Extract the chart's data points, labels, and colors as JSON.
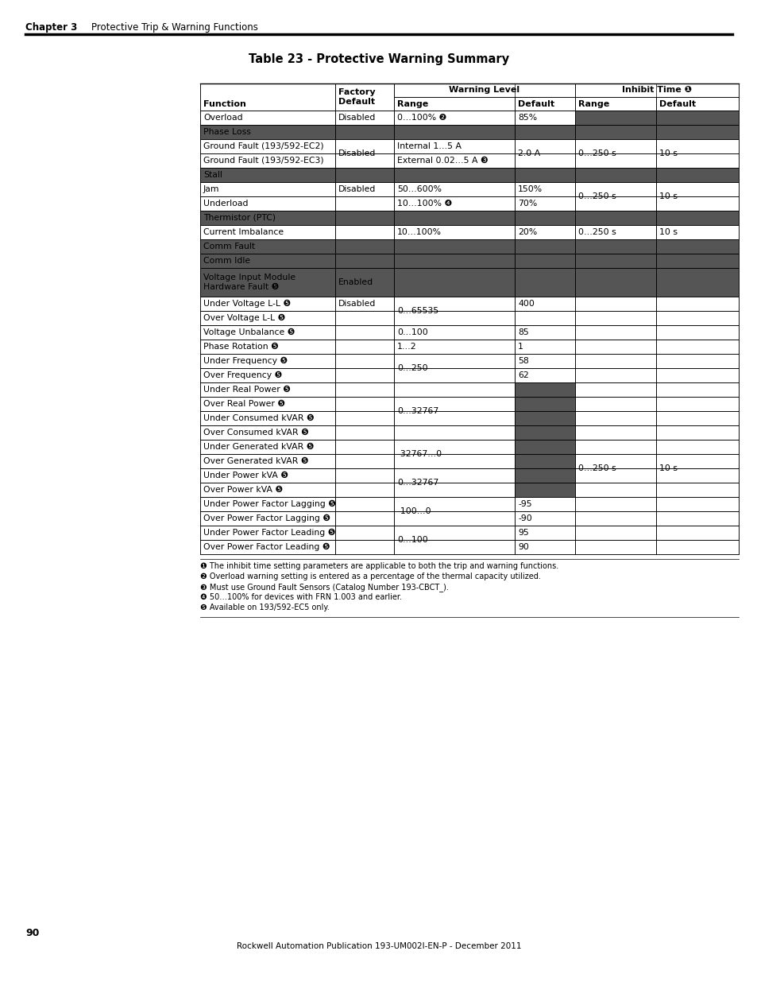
{
  "title": "Table 23 - Protective Warning Summary",
  "chapter_label": "Chapter 3",
  "chapter_subtitle": "Protective Trip & Warning Functions",
  "page_number": "90",
  "footer_text": "Rockwell Automation Publication 193-UM002I-EN-P - December 2011",
  "footnotes": [
    "❶ The inhibit time setting parameters are applicable to both the trip and warning functions.",
    "❷ Overload warning setting is entered as a percentage of the thermal capacity utilized.",
    "❸ Must use Ground Fault Sensors (Catalog Number 193-CBCT_).",
    "❹ 50…100% for devices with FRN 1.003 and earlier.",
    "❺ Available on 193/592-EC5 only."
  ],
  "dark_color": "#555555",
  "light_color": "#ffffff",
  "rows": [
    {
      "func": "Overload",
      "dark_func": false,
      "dark_range": false,
      "dark_default": false,
      "dark_inh": true
    },
    {
      "func": "Phase Loss",
      "dark_func": true,
      "dark_range": true,
      "dark_default": true,
      "dark_inh": true
    },
    {
      "func": "Ground Fault (193/592-EC2)",
      "dark_func": false,
      "dark_range": false,
      "dark_default": false,
      "dark_inh": false
    },
    {
      "func": "Ground Fault (193/592-EC3)",
      "dark_func": false,
      "dark_range": false,
      "dark_default": false,
      "dark_inh": false
    },
    {
      "func": "Stall",
      "dark_func": true,
      "dark_range": true,
      "dark_default": true,
      "dark_inh": true
    },
    {
      "func": "Jam",
      "dark_func": false,
      "dark_range": false,
      "dark_default": false,
      "dark_inh": false
    },
    {
      "func": "Underload",
      "dark_func": false,
      "dark_range": false,
      "dark_default": false,
      "dark_inh": false
    },
    {
      "func": "Thermistor (PTC)",
      "dark_func": true,
      "dark_range": true,
      "dark_default": true,
      "dark_inh": true
    },
    {
      "func": "Current Imbalance",
      "dark_func": false,
      "dark_range": false,
      "dark_default": false,
      "dark_inh": false
    },
    {
      "func": "Comm Fault",
      "dark_func": true,
      "dark_range": true,
      "dark_default": true,
      "dark_inh": true
    },
    {
      "func": "Comm Idle",
      "dark_func": true,
      "dark_range": true,
      "dark_default": true,
      "dark_inh": true
    },
    {
      "func": "Voltage Input Module\nHardware Fault ❺",
      "dark_func": true,
      "dark_range": true,
      "dark_default": true,
      "dark_inh": true
    },
    {
      "func": "Under Voltage L-L ❺",
      "dark_func": false,
      "dark_range": false,
      "dark_default": false,
      "dark_inh": false
    },
    {
      "func": "Over Voltage L-L ❺",
      "dark_func": false,
      "dark_range": false,
      "dark_default": false,
      "dark_inh": false
    },
    {
      "func": "Voltage Unbalance ❺",
      "dark_func": false,
      "dark_range": false,
      "dark_default": false,
      "dark_inh": false
    },
    {
      "func": "Phase Rotation ❺",
      "dark_func": false,
      "dark_range": false,
      "dark_default": false,
      "dark_inh": false
    },
    {
      "func": "Under Frequency ❺",
      "dark_func": false,
      "dark_range": false,
      "dark_default": false,
      "dark_inh": false
    },
    {
      "func": "Over Frequency ❺",
      "dark_func": false,
      "dark_range": false,
      "dark_default": false,
      "dark_inh": false
    },
    {
      "func": "Under Real Power ❺",
      "dark_func": false,
      "dark_range": false,
      "dark_default": true,
      "dark_inh": false
    },
    {
      "func": "Over Real Power ❺",
      "dark_func": false,
      "dark_range": false,
      "dark_default": true,
      "dark_inh": false
    },
    {
      "func": "Under Consumed kVAR ❺",
      "dark_func": false,
      "dark_range": false,
      "dark_default": true,
      "dark_inh": false
    },
    {
      "func": "Over Consumed kVAR ❺",
      "dark_func": false,
      "dark_range": false,
      "dark_default": true,
      "dark_inh": false
    },
    {
      "func": "Under Generated kVAR ❺",
      "dark_func": false,
      "dark_range": false,
      "dark_default": true,
      "dark_inh": false
    },
    {
      "func": "Over Generated kVAR ❺",
      "dark_func": false,
      "dark_range": false,
      "dark_default": true,
      "dark_inh": false
    },
    {
      "func": "Under Power kVA ❺",
      "dark_func": false,
      "dark_range": false,
      "dark_default": true,
      "dark_inh": false
    },
    {
      "func": "Over Power kVA ❺",
      "dark_func": false,
      "dark_range": false,
      "dark_default": true,
      "dark_inh": false
    },
    {
      "func": "Under Power Factor Lagging ❺",
      "dark_func": false,
      "dark_range": false,
      "dark_default": false,
      "dark_inh": false
    },
    {
      "func": "Over Power Factor Lagging ❺",
      "dark_func": false,
      "dark_range": false,
      "dark_default": false,
      "dark_inh": false
    },
    {
      "func": "Under Power Factor Leading ❺",
      "dark_func": false,
      "dark_range": false,
      "dark_default": false,
      "dark_inh": false
    },
    {
      "func": "Over Power Factor Leading ❺",
      "dark_func": false,
      "dark_range": false,
      "dark_default": false,
      "dark_inh": false
    }
  ]
}
